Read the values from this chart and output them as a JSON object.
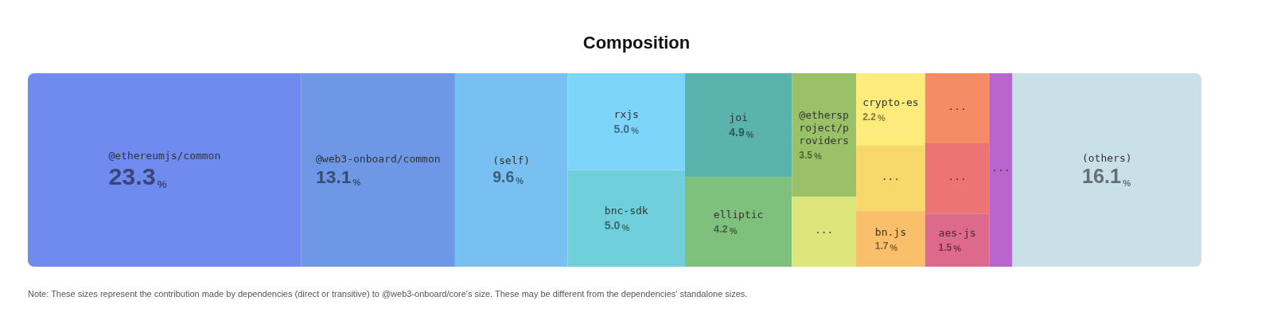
{
  "chart_data": {
    "type": "other",
    "title": "Composition",
    "categories": [
      "@ethereumjs/common",
      "@web3-onboard/common",
      "(self)",
      "rxjs",
      "bnc-sdk",
      "joi",
      "elliptic",
      "@ethersproject/providers",
      "...",
      "crypto-es",
      "...",
      "bn.js",
      "...",
      "...",
      "aes-js",
      "...",
      "(others)"
    ],
    "values": [
      23.3,
      13.1,
      9.6,
      5.0,
      5.0,
      4.9,
      4.2,
      3.5,
      null,
      2.2,
      null,
      1.7,
      null,
      null,
      1.5,
      null,
      16.1
    ],
    "value_labels": [
      "23.3%",
      "13.1%",
      "9.6%",
      "5.0%",
      "5.0%",
      "4.9%",
      "4.2%",
      "3.5%",
      null,
      "2.2%",
      null,
      "1.7%",
      null,
      null,
      "1.5%",
      null,
      "16.1%"
    ],
    "colors": [
      "#6f8bef",
      "#6e98e6",
      "#78bff2",
      "#7dd6fa",
      "#6fd0db",
      "#5ab3ac",
      "#80c07d",
      "#9bc168",
      "#dde67a",
      "#fdeb7c",
      "#f8d86a",
      "#f9bf6a",
      "#f58c66",
      "#ec7472",
      "#dd6a8c",
      "#b865ce",
      "#c9e0e9"
    ],
    "annotations": [
      "Note: These sizes represent the contribution made by dependencies (direct or transitive) to @web3-onboard/core's size. These may be different from the dependencies' standalone sizes."
    ]
  }
}
